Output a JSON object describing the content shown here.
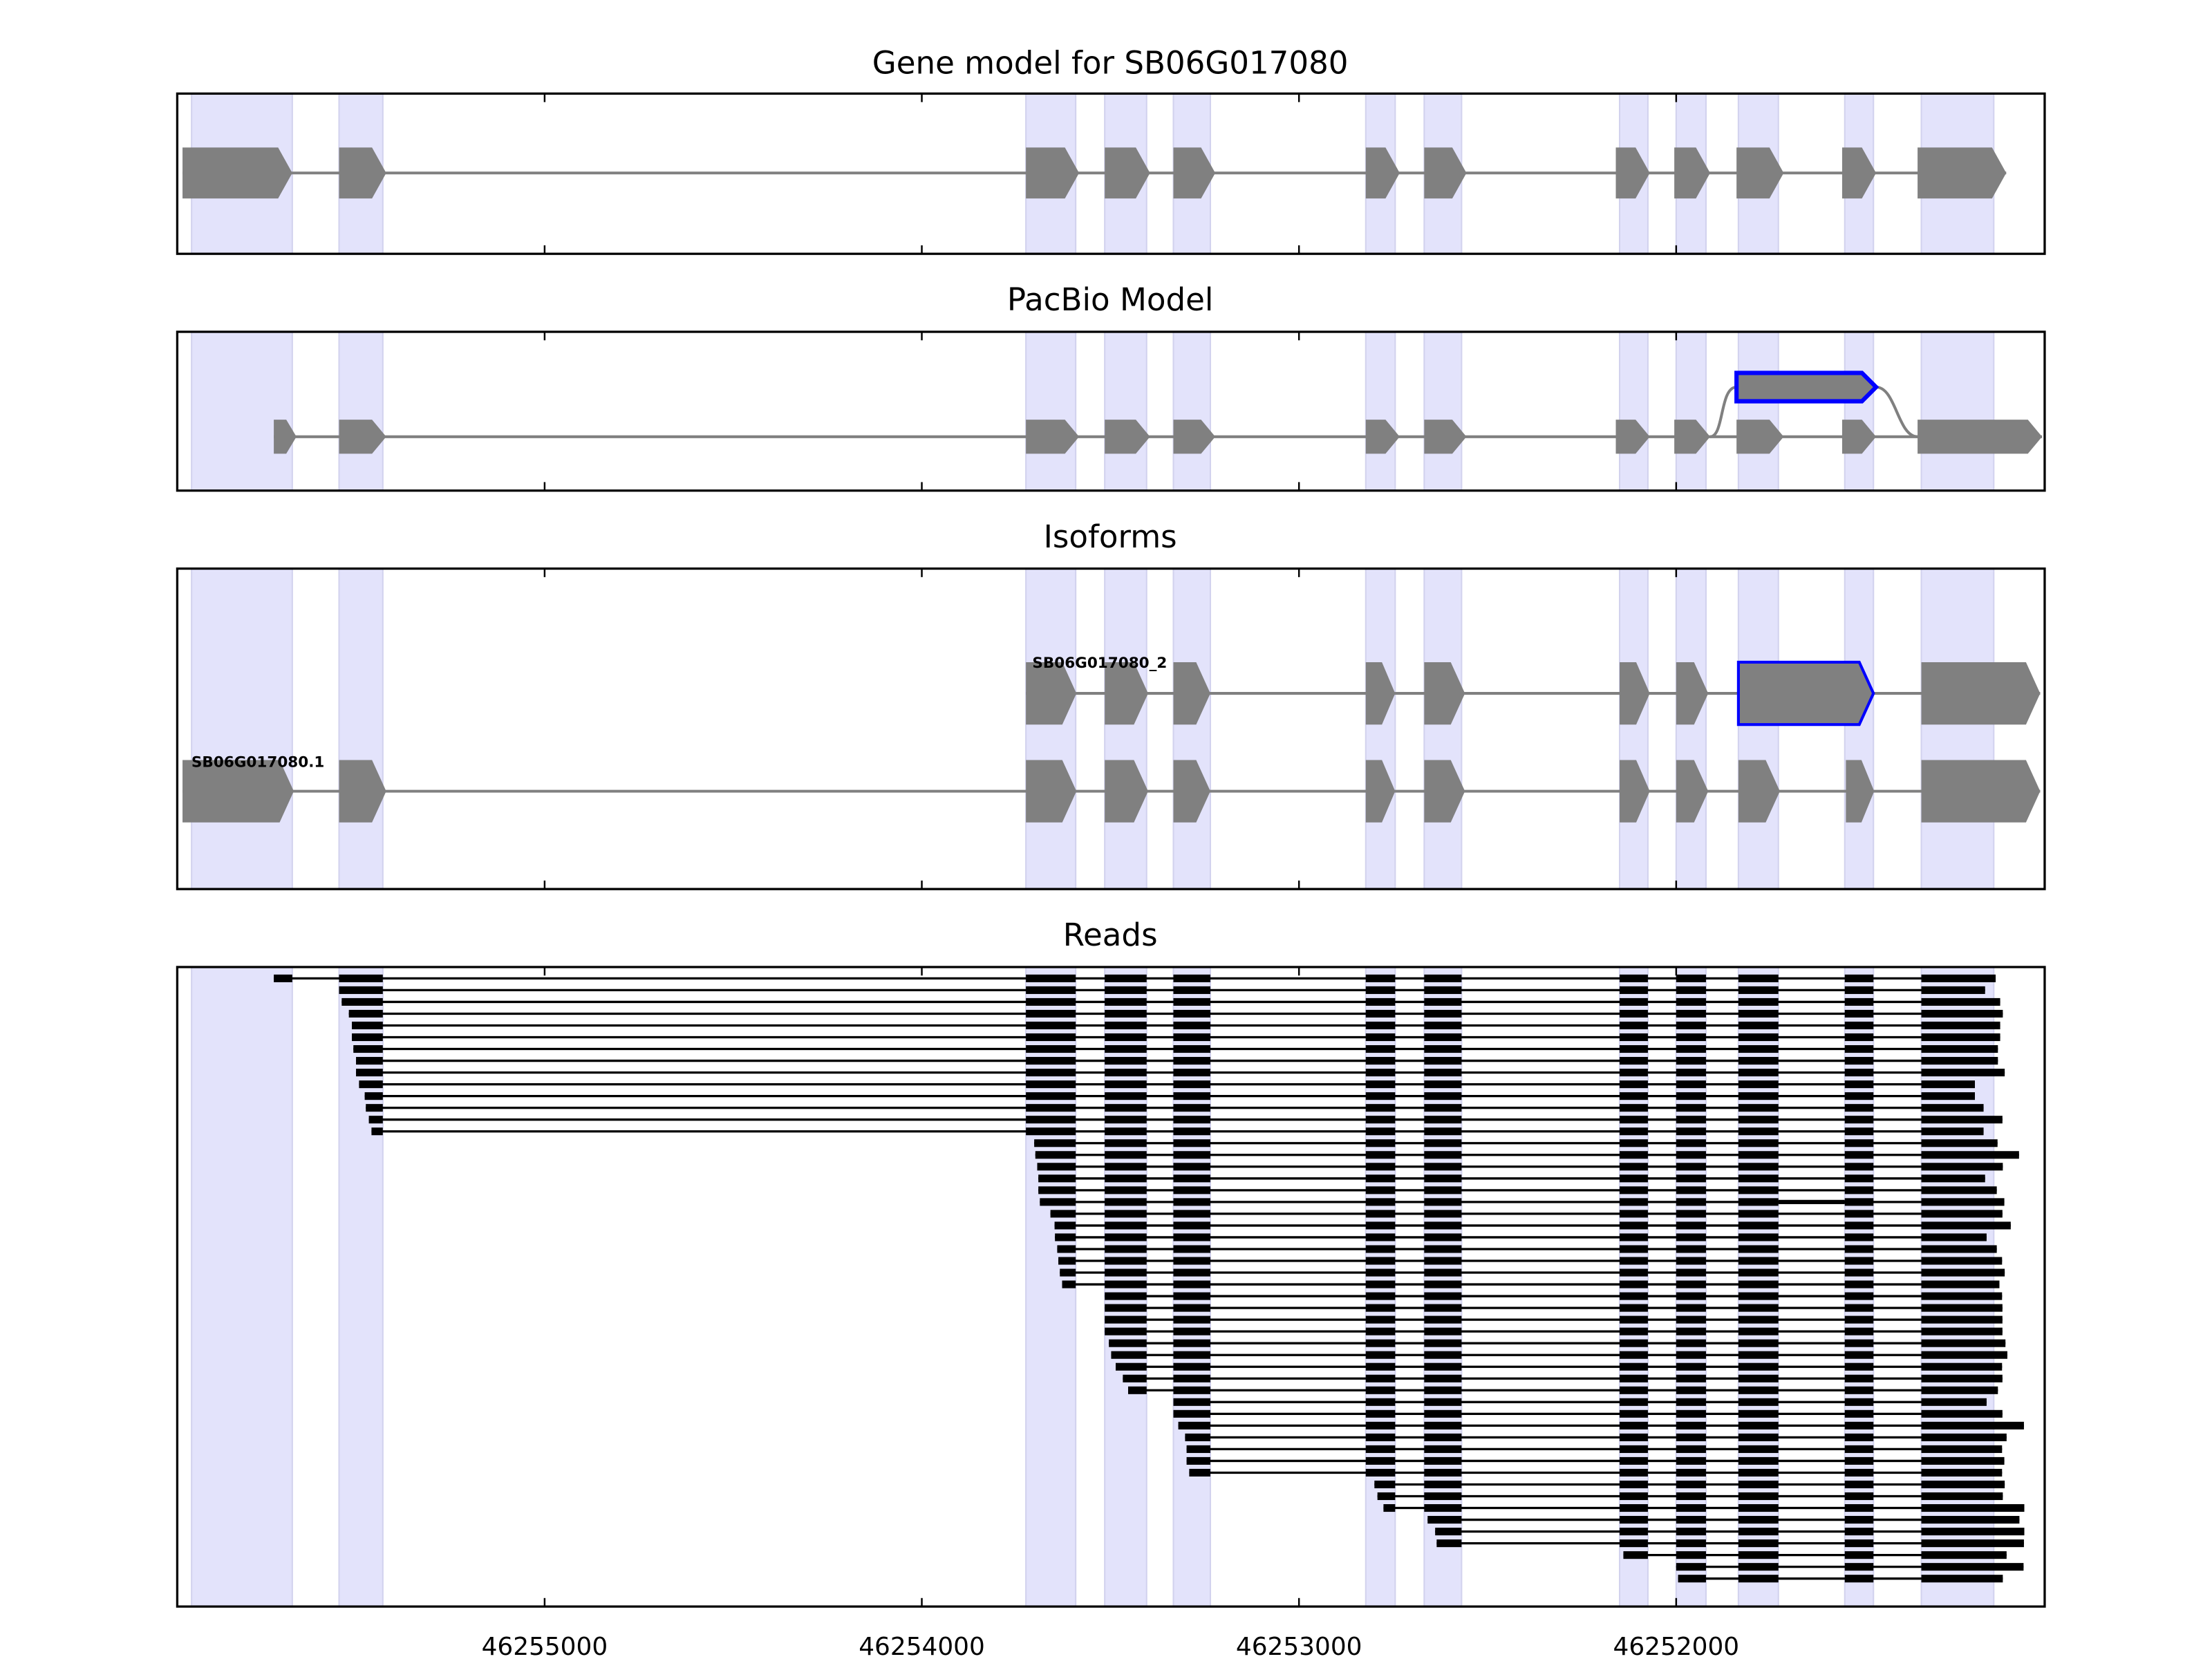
{
  "chart_data": {
    "type": "gene-structure",
    "xlim": [
      46255974,
      46251023
    ],
    "xticks": [
      46255000,
      46254000,
      46253000,
      46252000
    ],
    "xtick_labels": [
      "46255000",
      "46254000",
      "46253000",
      "46252000"
    ],
    "colors": {
      "shade": "#e3e3fb",
      "shade_edge": "#d2d2ee",
      "exon": "#808080",
      "intron": "#808080",
      "alt": "#0000ff",
      "read": "#000000"
    },
    "exon_regions": [
      [
        46255936,
        46255669
      ],
      [
        46255545,
        46255429
      ],
      [
        46253724,
        46253592
      ],
      [
        46253515,
        46253404
      ],
      [
        46253333,
        46253235
      ],
      [
        46252823,
        46252745
      ],
      [
        46252668,
        46252569
      ],
      [
        46252150,
        46252075
      ],
      [
        46252000,
        46251921
      ],
      [
        46251835,
        46251729
      ],
      [
        46251553,
        46251477
      ],
      [
        46251350,
        46251158
      ]
    ],
    "panels": [
      {
        "title": "Gene model for SB06G017080"
      },
      {
        "title": "PacBio Model"
      },
      {
        "title": "Isoforms"
      },
      {
        "title": "Reads"
      }
    ],
    "gene_model": {
      "exons": [
        [
          46255960,
          46255669
        ],
        [
          46255545,
          46255420
        ],
        [
          46253724,
          46253583
        ],
        [
          46253515,
          46253395
        ],
        [
          46253333,
          46253222
        ],
        [
          46252823,
          46252733
        ],
        [
          46252668,
          46252556
        ],
        [
          46252160,
          46252070
        ],
        [
          46252005,
          46251910
        ],
        [
          46251840,
          46251715
        ],
        [
          46251560,
          46251470
        ],
        [
          46251360,
          46251125
        ]
      ]
    },
    "pacbio_model": {
      "exons": [
        [
          46255718,
          46255658
        ],
        [
          46255545,
          46255420
        ],
        [
          46253724,
          46253583
        ],
        [
          46253515,
          46253395
        ],
        [
          46253333,
          46253222
        ],
        [
          46252823,
          46252733
        ],
        [
          46252668,
          46252556
        ],
        [
          46252160,
          46252070
        ],
        [
          46252005,
          46251910
        ],
        [
          46251840,
          46251715
        ],
        [
          46251560,
          46251470
        ],
        [
          46251360,
          46251030
        ]
      ],
      "alt_exon": [
        46251840,
        46251470
      ]
    },
    "isoforms": [
      {
        "name": "SB06G017080_2",
        "exons": [
          [
            46253724,
            46253590
          ],
          [
            46253515,
            46253400
          ],
          [
            46253333,
            46253235
          ],
          [
            46252823,
            46252745
          ],
          [
            46252668,
            46252560
          ],
          [
            46252150,
            46252070
          ],
          [
            46252000,
            46251915
          ],
          [
            46251835,
            46251477
          ],
          [
            46251350,
            46251035
          ]
        ],
        "highlight_index": 7
      },
      {
        "name": "SB06G017080.1",
        "exons": [
          [
            46255960,
            46255665
          ],
          [
            46255545,
            46255420
          ],
          [
            46253724,
            46253590
          ],
          [
            46253515,
            46253400
          ],
          [
            46253333,
            46253235
          ],
          [
            46252823,
            46252745
          ],
          [
            46252668,
            46252560
          ],
          [
            46252150,
            46252070
          ],
          [
            46252000,
            46251915
          ],
          [
            46251835,
            46251725
          ],
          [
            46251550,
            46251475
          ],
          [
            46251350,
            46251035
          ]
        ],
        "highlight_index": -1
      }
    ],
    "reads": [
      {
        "start": 46255718,
        "end": 46251153
      },
      {
        "start": 46255545,
        "end": 46251181
      },
      {
        "start": 46255538,
        "end": 46251141
      },
      {
        "start": 46255519,
        "end": 46251134
      },
      {
        "start": 46255511,
        "end": 46251141
      },
      {
        "start": 46255511,
        "end": 46251141
      },
      {
        "start": 46255507,
        "end": 46251147
      },
      {
        "start": 46255500,
        "end": 46251147
      },
      {
        "start": 46255500,
        "end": 46251129
      },
      {
        "start": 46255492,
        "end": 46251208
      },
      {
        "start": 46255477,
        "end": 46251208
      },
      {
        "start": 46255474,
        "end": 46251185
      },
      {
        "start": 46255466,
        "end": 46251135
      },
      {
        "start": 46255459,
        "end": 46251185
      },
      {
        "start": 46253702,
        "end": 46251148
      },
      {
        "start": 46253699,
        "end": 46251091
      },
      {
        "start": 46253694,
        "end": 46251134
      },
      {
        "start": 46253691,
        "end": 46251181
      },
      {
        "start": 46253691,
        "end": 46251150
      },
      {
        "start": 46253687,
        "end": 46251130,
        "retained_intron": true
      },
      {
        "start": 46253659,
        "end": 46251135
      },
      {
        "start": 46253648,
        "end": 46251113
      },
      {
        "start": 46253647,
        "end": 46251177
      },
      {
        "start": 46253641,
        "end": 46251150
      },
      {
        "start": 46253638,
        "end": 46251136
      },
      {
        "start": 46253634,
        "end": 46251129
      },
      {
        "start": 46253628,
        "end": 46251143
      },
      {
        "start": 46253515,
        "end": 46251136
      },
      {
        "start": 46253515,
        "end": 46251135
      },
      {
        "start": 46253515,
        "end": 46251135
      },
      {
        "start": 46253515,
        "end": 46251135
      },
      {
        "start": 46253504,
        "end": 46251127
      },
      {
        "start": 46253498,
        "end": 46251122
      },
      {
        "start": 46253486,
        "end": 46251136
      },
      {
        "start": 46253467,
        "end": 46251135
      },
      {
        "start": 46253453,
        "end": 46251147
      },
      {
        "start": 46253333,
        "end": 46251177
      },
      {
        "start": 46253333,
        "end": 46251135
      },
      {
        "start": 46253320,
        "end": 46251078
      },
      {
        "start": 46253302,
        "end": 46251124
      },
      {
        "start": 46253298,
        "end": 46251136
      },
      {
        "start": 46253298,
        "end": 46251130
      },
      {
        "start": 46253291,
        "end": 46251136
      },
      {
        "start": 46252800,
        "end": 46251129
      },
      {
        "start": 46252792,
        "end": 46251134
      },
      {
        "start": 46252776,
        "end": 46251077
      },
      {
        "start": 46252659,
        "end": 46251090
      },
      {
        "start": 46252639,
        "end": 46251077
      },
      {
        "start": 46252635,
        "end": 46251078
      },
      {
        "start": 46252140,
        "end": 46251124
      },
      {
        "start": 46252000,
        "end": 46251079
      },
      {
        "start": 46251995,
        "end": 46251134
      }
    ]
  }
}
